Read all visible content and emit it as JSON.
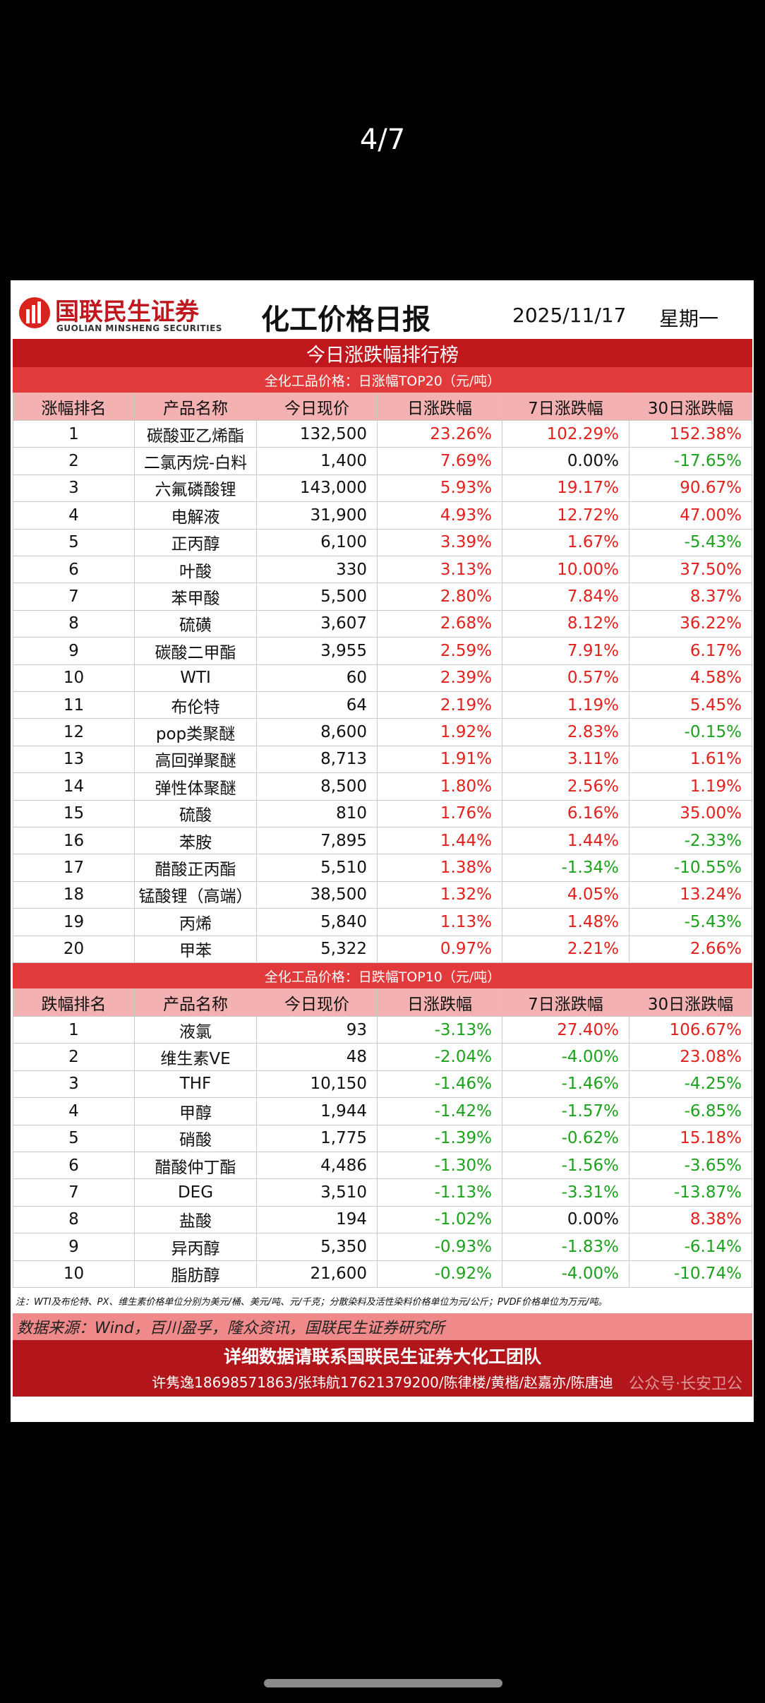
{
  "viewer": {
    "page_indicator": "4/7"
  },
  "header": {
    "brand": "国联民生证券",
    "brand_en": "GUOLIAN MINSHENG SECURITIES",
    "title": "化工价格日报",
    "date": "2025/11/17",
    "weekday": "星期一"
  },
  "banner": "今日涨跌幅排行榜",
  "sections": [
    {
      "subtitle": "全化工品价格：日涨幅TOP20（元/吨）",
      "columns": [
        "涨幅排名",
        "产品名称",
        "今日现价",
        "日涨跌幅",
        "7日涨跌幅",
        "30日涨跌幅"
      ],
      "rows": [
        [
          "1",
          "碳酸亚乙烯酯",
          "132,500",
          "23.26%",
          "102.29%",
          "152.38%"
        ],
        [
          "2",
          "二氯丙烷-白料",
          "1,400",
          "7.69%",
          "0.00%",
          "-17.65%"
        ],
        [
          "3",
          "六氟磷酸锂",
          "143,000",
          "5.93%",
          "19.17%",
          "90.67%"
        ],
        [
          "4",
          "电解液",
          "31,900",
          "4.93%",
          "12.72%",
          "47.00%"
        ],
        [
          "5",
          "正丙醇",
          "6,100",
          "3.39%",
          "1.67%",
          "-5.43%"
        ],
        [
          "6",
          "叶酸",
          "330",
          "3.13%",
          "10.00%",
          "37.50%"
        ],
        [
          "7",
          "苯甲酸",
          "5,500",
          "2.80%",
          "7.84%",
          "8.37%"
        ],
        [
          "8",
          "硫磺",
          "3,607",
          "2.68%",
          "8.12%",
          "36.22%"
        ],
        [
          "9",
          "碳酸二甲酯",
          "3,955",
          "2.59%",
          "7.91%",
          "6.17%"
        ],
        [
          "10",
          "WTI",
          "60",
          "2.39%",
          "0.57%",
          "4.58%"
        ],
        [
          "11",
          "布伦特",
          "64",
          "2.19%",
          "1.19%",
          "5.45%"
        ],
        [
          "12",
          "pop类聚醚",
          "8,600",
          "1.92%",
          "2.83%",
          "-0.15%"
        ],
        [
          "13",
          "高回弹聚醚",
          "8,713",
          "1.91%",
          "3.11%",
          "1.61%"
        ],
        [
          "14",
          "弹性体聚醚",
          "8,500",
          "1.80%",
          "2.56%",
          "1.19%"
        ],
        [
          "15",
          "硫酸",
          "810",
          "1.76%",
          "6.16%",
          "35.00%"
        ],
        [
          "16",
          "苯胺",
          "7,895",
          "1.44%",
          "1.44%",
          "-2.33%"
        ],
        [
          "17",
          "醋酸正丙酯",
          "5,510",
          "1.38%",
          "-1.34%",
          "-10.55%"
        ],
        [
          "18",
          "锰酸锂（高端）",
          "38,500",
          "1.32%",
          "4.05%",
          "13.24%"
        ],
        [
          "19",
          "丙烯",
          "5,840",
          "1.13%",
          "1.48%",
          "-5.43%"
        ],
        [
          "20",
          "甲苯",
          "5,322",
          "0.97%",
          "2.21%",
          "2.66%"
        ]
      ]
    },
    {
      "subtitle": "全化工品价格：日跌幅TOP10（元/吨）",
      "columns": [
        "跌幅排名",
        "产品名称",
        "今日现价",
        "日涨跌幅",
        "7日涨跌幅",
        "30日涨跌幅"
      ],
      "rows": [
        [
          "1",
          "液氯",
          "93",
          "-3.13%",
          "27.40%",
          "106.67%"
        ],
        [
          "2",
          "维生素VE",
          "48",
          "-2.04%",
          "-4.00%",
          "23.08%"
        ],
        [
          "3",
          "THF",
          "10,150",
          "-1.46%",
          "-1.46%",
          "-4.25%"
        ],
        [
          "4",
          "甲醇",
          "1,944",
          "-1.42%",
          "-1.57%",
          "-6.85%"
        ],
        [
          "5",
          "硝酸",
          "1,775",
          "-1.39%",
          "-0.62%",
          "15.18%"
        ],
        [
          "6",
          "醋酸仲丁酯",
          "4,486",
          "-1.30%",
          "-1.56%",
          "-3.65%"
        ],
        [
          "7",
          "DEG",
          "3,510",
          "-1.13%",
          "-3.31%",
          "-13.87%"
        ],
        [
          "8",
          "盐酸",
          "194",
          "-1.02%",
          "0.00%",
          "8.38%"
        ],
        [
          "9",
          "异丙醇",
          "5,350",
          "-0.93%",
          "-1.83%",
          "-6.14%"
        ],
        [
          "10",
          "脂肪醇",
          "21,600",
          "-0.92%",
          "-4.00%",
          "-10.74%"
        ]
      ]
    }
  ],
  "note": "注：WTI及布伦特、PX、维生素价格单位分别为美元/桶、美元/吨、元/千克；分散染料及活性染料价格单位为元/公斤；PVDF价格单位为万元/吨。",
  "source": "数据来源：Wind，百川盈孚，隆众资讯，国联民生证券研究所",
  "footer": {
    "line1": "详细数据请联系国联民生证券大化工团队",
    "line2": "许隽逸18698571863/张玮航17621379200/陈律楼/黄楷/赵嘉亦/陈唐迪",
    "watermark": "公众号·长安卫公"
  }
}
